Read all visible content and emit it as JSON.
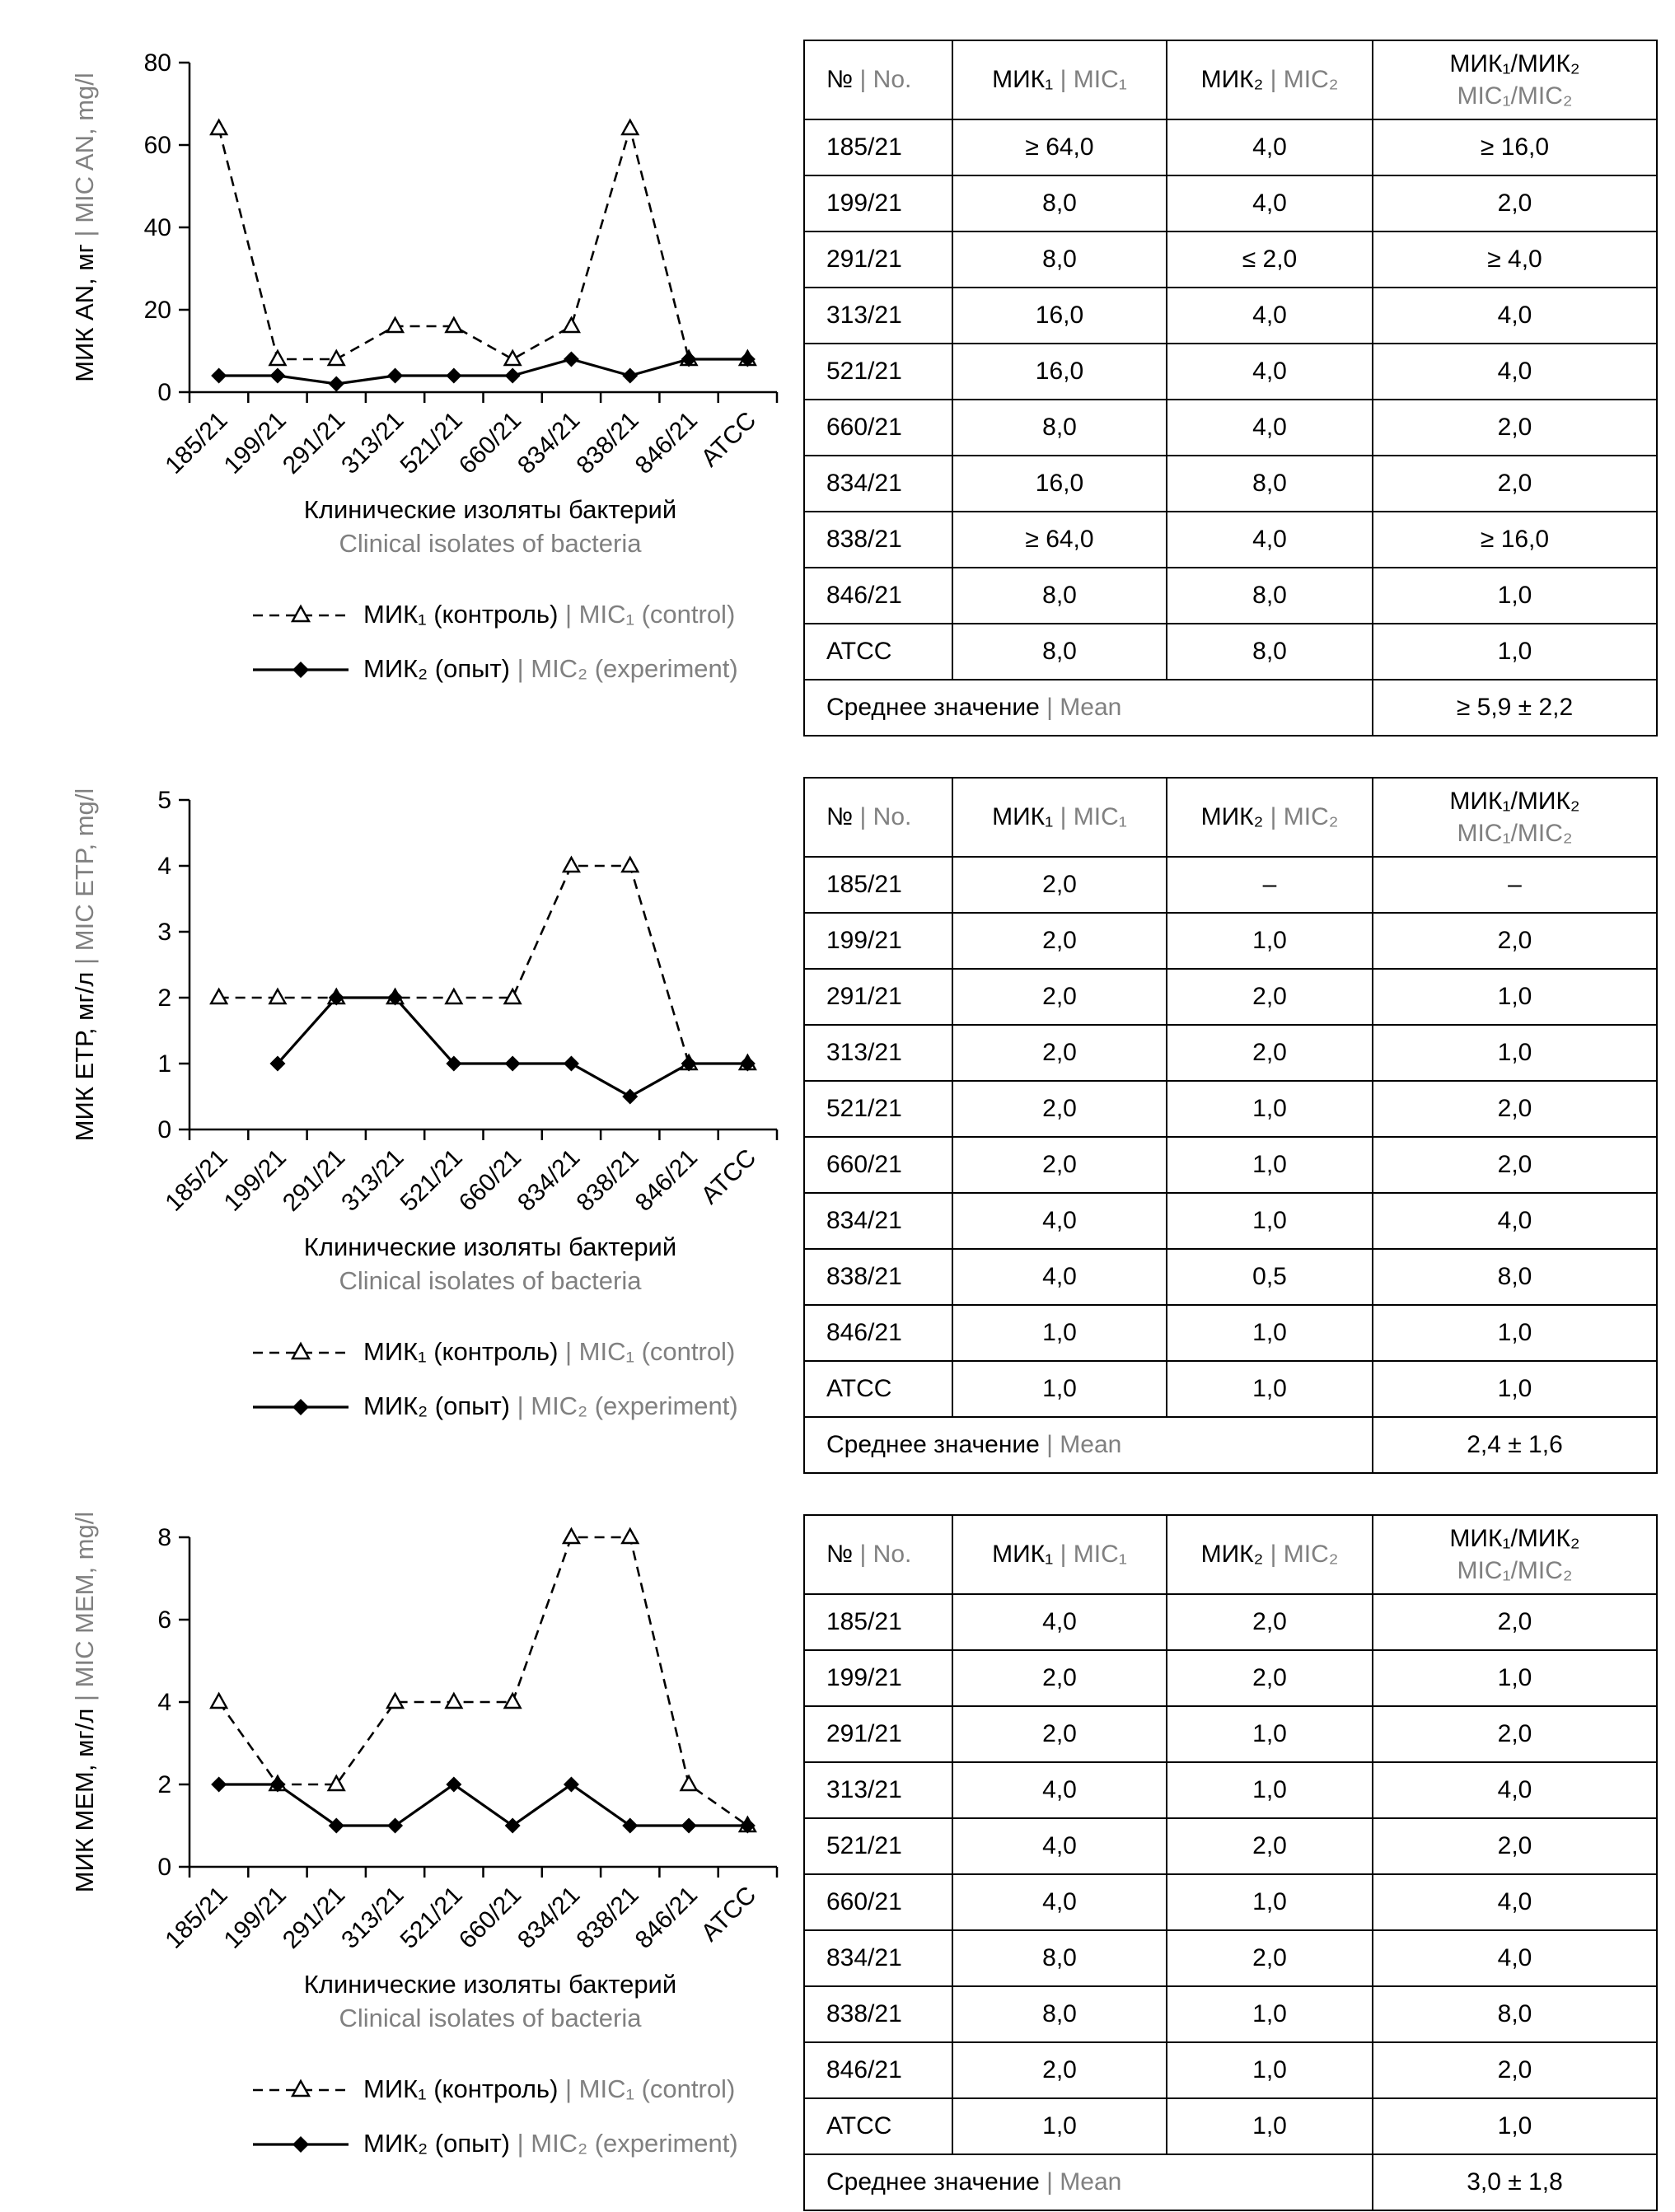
{
  "colors": {
    "text": "#000000",
    "muted": "#808080"
  },
  "chart_data": [
    {
      "type": "line",
      "categories": [
        "185/21",
        "199/21",
        "291/21",
        "313/21",
        "521/21",
        "660/21",
        "834/21",
        "838/21",
        "846/21",
        "ATCC"
      ],
      "series": [
        {
          "name_ru": "МИК₁ (контроль)",
          "name_en": "MIC₁ (control)",
          "style": "dashed-triangle",
          "values": [
            64,
            8,
            8,
            16,
            16,
            8,
            16,
            64,
            8,
            8
          ]
        },
        {
          "name_ru": "МИК₂ (опыт)",
          "name_en": "MIC₂ (experiment)",
          "style": "solid-diamond",
          "values": [
            4,
            4,
            2,
            4,
            4,
            4,
            8,
            4,
            8,
            8
          ]
        }
      ],
      "ylabel_ru": "МИК AN, мг",
      "ylabel_en": "MIC AN, mg/l",
      "xlabel_ru": "Клинические изоляты бактерий",
      "xlabel_en": "Clinical isolates of bacteria",
      "ylim": [
        0,
        80
      ],
      "yticks": [
        0,
        20,
        40,
        60,
        80
      ],
      "grid": false,
      "legend_position": "bottom"
    },
    {
      "type": "line",
      "categories": [
        "185/21",
        "199/21",
        "291/21",
        "313/21",
        "521/21",
        "660/21",
        "834/21",
        "838/21",
        "846/21",
        "ATCC"
      ],
      "series": [
        {
          "name_ru": "МИК₁ (контроль)",
          "name_en": "MIC₁ (control)",
          "style": "dashed-triangle",
          "values": [
            2,
            2,
            2,
            2,
            2,
            2,
            4,
            4,
            1,
            1
          ]
        },
        {
          "name_ru": "МИК₂ (опыт)",
          "name_en": "MIC₂ (experiment)",
          "style": "solid-diamond",
          "values": [
            null,
            1,
            2,
            2,
            1,
            1,
            1,
            0.5,
            1,
            1
          ]
        }
      ],
      "ylabel_ru": "МИК ЕТР, мг/л",
      "ylabel_en": "MIC ETP, mg/l",
      "xlabel_ru": "Клинические изоляты бактерий",
      "xlabel_en": "Clinical isolates of bacteria",
      "ylim": [
        0,
        5
      ],
      "yticks": [
        0,
        1,
        2,
        3,
        4,
        5
      ],
      "grid": false,
      "legend_position": "bottom"
    },
    {
      "type": "line",
      "categories": [
        "185/21",
        "199/21",
        "291/21",
        "313/21",
        "521/21",
        "660/21",
        "834/21",
        "838/21",
        "846/21",
        "ATCC"
      ],
      "series": [
        {
          "name_ru": "МИК₁ (контроль)",
          "name_en": "MIC₁ (control)",
          "style": "dashed-triangle",
          "values": [
            4,
            2,
            2,
            4,
            4,
            4,
            8,
            8,
            2,
            1
          ]
        },
        {
          "name_ru": "МИК₂ (опыт)",
          "name_en": "MIC₂ (experiment)",
          "style": "solid-diamond",
          "values": [
            2,
            2,
            1,
            1,
            2,
            1,
            2,
            1,
            1,
            1
          ]
        }
      ],
      "ylabel_ru": "МИК МЕМ, мг/л",
      "ylabel_en": "MIC MEM, mg/l",
      "xlabel_ru": "Клинические изоляты бактерий",
      "xlabel_en": "Clinical isolates of bacteria",
      "ylim": [
        0,
        8
      ],
      "yticks": [
        0,
        2,
        4,
        6,
        8
      ],
      "grid": false,
      "legend_position": "bottom"
    }
  ],
  "tables": [
    {
      "headers": [
        {
          "ru": "№",
          "en": "No.",
          "stacked": false
        },
        {
          "ru": "МИК₁",
          "en": "MIC₁",
          "stacked": false
        },
        {
          "ru": "МИК₂",
          "en": "MIC₂",
          "stacked": false
        },
        {
          "ru": "МИК₁/МИК₂",
          "en": "MIC₁/MIC₂",
          "stacked": true
        }
      ],
      "rows": [
        [
          "185/21",
          "≥ 64,0",
          "4,0",
          "≥ 16,0"
        ],
        [
          "199/21",
          "8,0",
          "4,0",
          "2,0"
        ],
        [
          "291/21",
          "8,0",
          "≤ 2,0",
          "≥ 4,0"
        ],
        [
          "313/21",
          "16,0",
          "4,0",
          "4,0"
        ],
        [
          "521/21",
          "16,0",
          "4,0",
          "4,0"
        ],
        [
          "660/21",
          "8,0",
          "4,0",
          "2,0"
        ],
        [
          "834/21",
          "16,0",
          "8,0",
          "2,0"
        ],
        [
          "838/21",
          "≥ 64,0",
          "4,0",
          "≥ 16,0"
        ],
        [
          "846/21",
          "8,0",
          "8,0",
          "1,0"
        ],
        [
          "ATCC",
          "8,0",
          "8,0",
          "1,0"
        ]
      ],
      "mean": {
        "label_ru": "Среднее значение",
        "label_en": "Mean",
        "value": "≥ 5,9 ± 2,2"
      }
    },
    {
      "headers": [
        {
          "ru": "№",
          "en": "No.",
          "stacked": false
        },
        {
          "ru": "МИК₁",
          "en": "MIC₁",
          "stacked": false
        },
        {
          "ru": "МИК₂",
          "en": "MIC₂",
          "stacked": false
        },
        {
          "ru": "МИК₁/МИК₂",
          "en": "MIC₁/MIC₂",
          "stacked": true
        }
      ],
      "rows": [
        [
          "185/21",
          "2,0",
          "–",
          "–"
        ],
        [
          "199/21",
          "2,0",
          "1,0",
          "2,0"
        ],
        [
          "291/21",
          "2,0",
          "2,0",
          "1,0"
        ],
        [
          "313/21",
          "2,0",
          "2,0",
          "1,0"
        ],
        [
          "521/21",
          "2,0",
          "1,0",
          "2,0"
        ],
        [
          "660/21",
          "2,0",
          "1,0",
          "2,0"
        ],
        [
          "834/21",
          "4,0",
          "1,0",
          "4,0"
        ],
        [
          "838/21",
          "4,0",
          "0,5",
          "8,0"
        ],
        [
          "846/21",
          "1,0",
          "1,0",
          "1,0"
        ],
        [
          "ATCC",
          "1,0",
          "1,0",
          "1,0"
        ]
      ],
      "mean": {
        "label_ru": "Среднее значение",
        "label_en": "Mean",
        "value": "2,4 ± 1,6"
      }
    },
    {
      "headers": [
        {
          "ru": "№",
          "en": "No.",
          "stacked": false
        },
        {
          "ru": "МИК₁",
          "en": "MIC₁",
          "stacked": false
        },
        {
          "ru": "МИК₂",
          "en": "MIC₂",
          "stacked": false
        },
        {
          "ru": "МИК₁/МИК₂",
          "en": "MIC₁/MIC₂",
          "stacked": true
        }
      ],
      "rows": [
        [
          "185/21",
          "4,0",
          "2,0",
          "2,0"
        ],
        [
          "199/21",
          "2,0",
          "2,0",
          "1,0"
        ],
        [
          "291/21",
          "2,0",
          "1,0",
          "2,0"
        ],
        [
          "313/21",
          "4,0",
          "1,0",
          "4,0"
        ],
        [
          "521/21",
          "4,0",
          "2,0",
          "2,0"
        ],
        [
          "660/21",
          "4,0",
          "1,0",
          "4,0"
        ],
        [
          "834/21",
          "8,0",
          "2,0",
          "4,0"
        ],
        [
          "838/21",
          "8,0",
          "1,0",
          "8,0"
        ],
        [
          "846/21",
          "2,0",
          "1,0",
          "2,0"
        ],
        [
          "ATCC",
          "1,0",
          "1,0",
          "1,0"
        ]
      ],
      "mean": {
        "label_ru": "Среднее значение",
        "label_en": "Mean",
        "value": "3,0 ± 1,8"
      }
    }
  ]
}
